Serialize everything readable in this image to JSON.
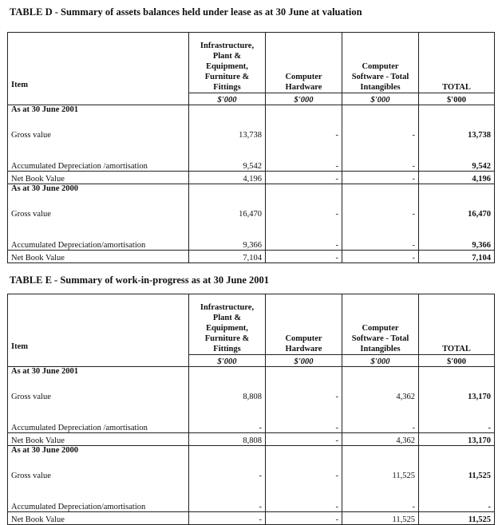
{
  "columns": {
    "item": "Item",
    "col1": "Infrastructure, Plant & Equipment, Furniture & Fittings",
    "col2": "Computer Hardware",
    "col3": "Computer Software - Total Intangibles",
    "total": "TOTAL",
    "unit": "$'000"
  },
  "tables": [
    {
      "title": "TABLE D - Summary of assets balances held under lease as at 30 June at valuation",
      "sections": [
        {
          "heading": "As at 30 June 2001",
          "rows": [
            {
              "label": "Gross value",
              "values": [
                "13,738",
                "-",
                "-",
                "13,738"
              ]
            },
            {
              "label": "Accumulated Depreciation /amortisation",
              "values": [
                "9,542",
                "-",
                "-",
                "9,542"
              ]
            },
            {
              "label": "Net Book Value",
              "values": [
                "4,196",
                "-",
                "-",
                "4,196"
              ]
            }
          ]
        },
        {
          "heading": "As at 30 June 2000",
          "rows": [
            {
              "label": "Gross value",
              "values": [
                "16,470",
                "-",
                "-",
                "16,470"
              ]
            },
            {
              "label": "Accumulated Depreciation/amortisation",
              "values": [
                "9,366",
                "-",
                "-",
                "9,366"
              ]
            },
            {
              "label": "Net Book Value",
              "values": [
                "7,104",
                "-",
                "-",
                "7,104"
              ]
            }
          ]
        }
      ]
    },
    {
      "title": "TABLE E - Summary of work-in-progress as at 30 June 2001",
      "sections": [
        {
          "heading": "As at 30 June 2001",
          "rows": [
            {
              "label": "Gross value",
              "values": [
                "8,808",
                "-",
                "4,362",
                "13,170"
              ]
            },
            {
              "label": "Accumulated Depreciation /amortisation",
              "values": [
                "-",
                "-",
                "-",
                "-"
              ]
            },
            {
              "label": "Net Book Value",
              "values": [
                "8,808",
                "-",
                "4,362",
                "13,170"
              ]
            }
          ]
        },
        {
          "heading": "As at 30 June 2000",
          "rows": [
            {
              "label": "Gross value",
              "values": [
                "-",
                "-",
                "11,525",
                "11,525"
              ]
            },
            {
              "label": "Accumulated Depreciation/amortisation",
              "values": [
                "-",
                "-",
                "-",
                "-"
              ]
            },
            {
              "label": "Net Book Value",
              "values": [
                "-",
                "-",
                "11,525",
                "11,525"
              ]
            }
          ]
        }
      ]
    }
  ]
}
